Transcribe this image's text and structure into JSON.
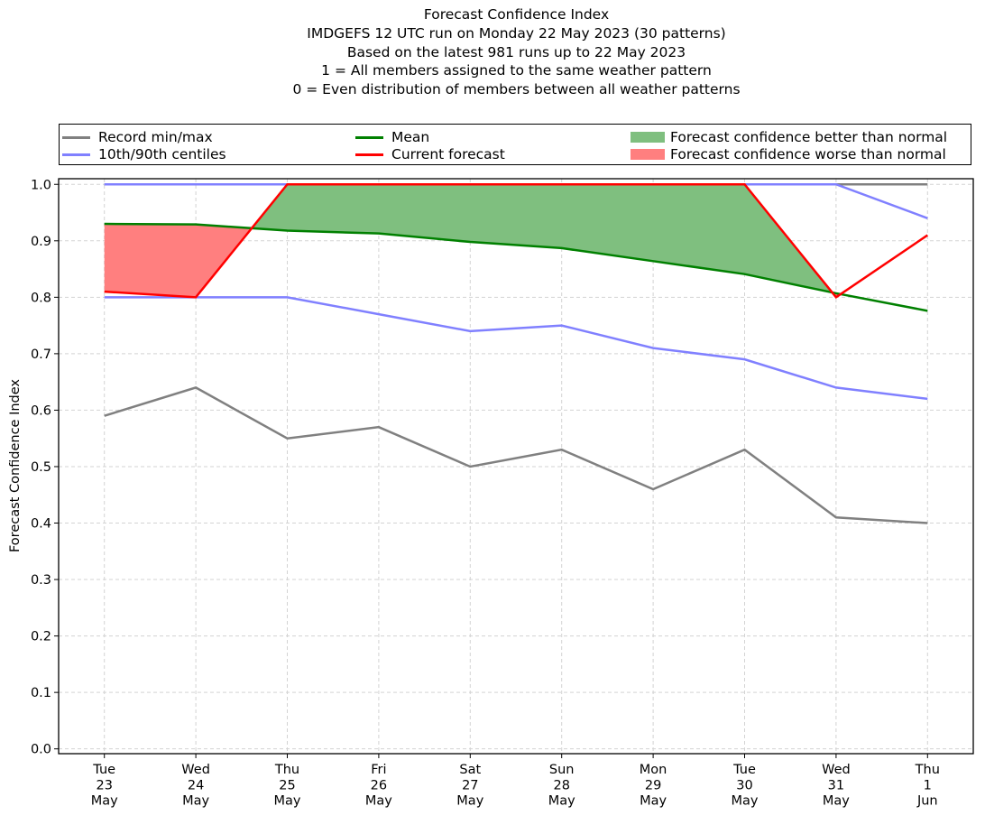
{
  "chart_data": {
    "type": "line",
    "title": "Forecast Confidence Index",
    "subtitle_lines": [
      "IMDGEFS 12 UTC run on Monday 22 May 2023 (30 patterns)",
      "Based on the latest 981 runs up to 22 May 2023",
      "1 = All members assigned to the same weather pattern",
      "0 = Even distribution of members between all weather patterns"
    ],
    "xlabel": "",
    "ylabel": "Forecast Confidence Index",
    "ylim": [
      -0.0085,
      1.01
    ],
    "xlim": [
      -0.5,
      9.5
    ],
    "grid": true,
    "legend_placement": "top, above plot",
    "categories": [
      {
        "day": "Tue",
        "date": "23",
        "month": "May"
      },
      {
        "day": "Wed",
        "date": "24",
        "month": "May"
      },
      {
        "day": "Thu",
        "date": "25",
        "month": "May"
      },
      {
        "day": "Fri",
        "date": "26",
        "month": "May"
      },
      {
        "day": "Sat",
        "date": "27",
        "month": "May"
      },
      {
        "day": "Sun",
        "date": "28",
        "month": "May"
      },
      {
        "day": "Mon",
        "date": "29",
        "month": "May"
      },
      {
        "day": "Tue",
        "date": "30",
        "month": "May"
      },
      {
        "day": "Wed",
        "date": "31",
        "month": "May"
      },
      {
        "day": "Thu",
        "date": "1",
        "month": "Jun"
      }
    ],
    "yticks": [
      "0.0",
      "0.1",
      "0.2",
      "0.3",
      "0.4",
      "0.5",
      "0.6",
      "0.7",
      "0.8",
      "0.9",
      "1.0"
    ],
    "series": [
      {
        "name": "Record max",
        "color": "#808080",
        "values": [
          1.0,
          1.0,
          1.0,
          1.0,
          1.0,
          1.0,
          1.0,
          1.0,
          1.0,
          1.0
        ]
      },
      {
        "name": "Record min",
        "color": "#808080",
        "values": [
          0.59,
          0.64,
          0.55,
          0.57,
          0.5,
          0.53,
          0.46,
          0.53,
          0.41,
          0.4
        ]
      },
      {
        "name": "90th centile",
        "color": "#8080ff",
        "values": [
          1.0,
          1.0,
          1.0,
          1.0,
          1.0,
          1.0,
          1.0,
          1.0,
          1.0,
          0.94
        ]
      },
      {
        "name": "10th centile",
        "color": "#8080ff",
        "values": [
          0.8,
          0.8,
          0.8,
          0.77,
          0.74,
          0.75,
          0.71,
          0.69,
          0.64,
          0.62
        ]
      },
      {
        "name": "Mean",
        "color": "#008000",
        "values": [
          0.93,
          0.929,
          0.918,
          0.913,
          0.898,
          0.887,
          0.864,
          0.841,
          0.807,
          0.776
        ]
      },
      {
        "name": "Current forecast",
        "color": "#ff0000",
        "values": [
          0.81,
          0.8,
          1.0,
          1.0,
          1.0,
          1.0,
          1.0,
          1.0,
          0.8,
          0.91
        ]
      }
    ],
    "fills": {
      "better_color": "#7fbf7f",
      "worse_color": "#ff7f7f"
    },
    "legend": [
      {
        "label": "Record min/max",
        "kind": "line",
        "color": "#808080"
      },
      {
        "label": "10th/90th centiles",
        "kind": "line",
        "color": "#8080ff"
      },
      {
        "label": "Mean",
        "kind": "line",
        "color": "#008000"
      },
      {
        "label": "Current forecast",
        "kind": "line",
        "color": "#ff0000"
      },
      {
        "label": "Forecast confidence better than normal",
        "kind": "patch",
        "color": "#7fbf7f"
      },
      {
        "label": "Forecast confidence worse than normal",
        "kind": "patch",
        "color": "#ff7f7f"
      }
    ]
  }
}
